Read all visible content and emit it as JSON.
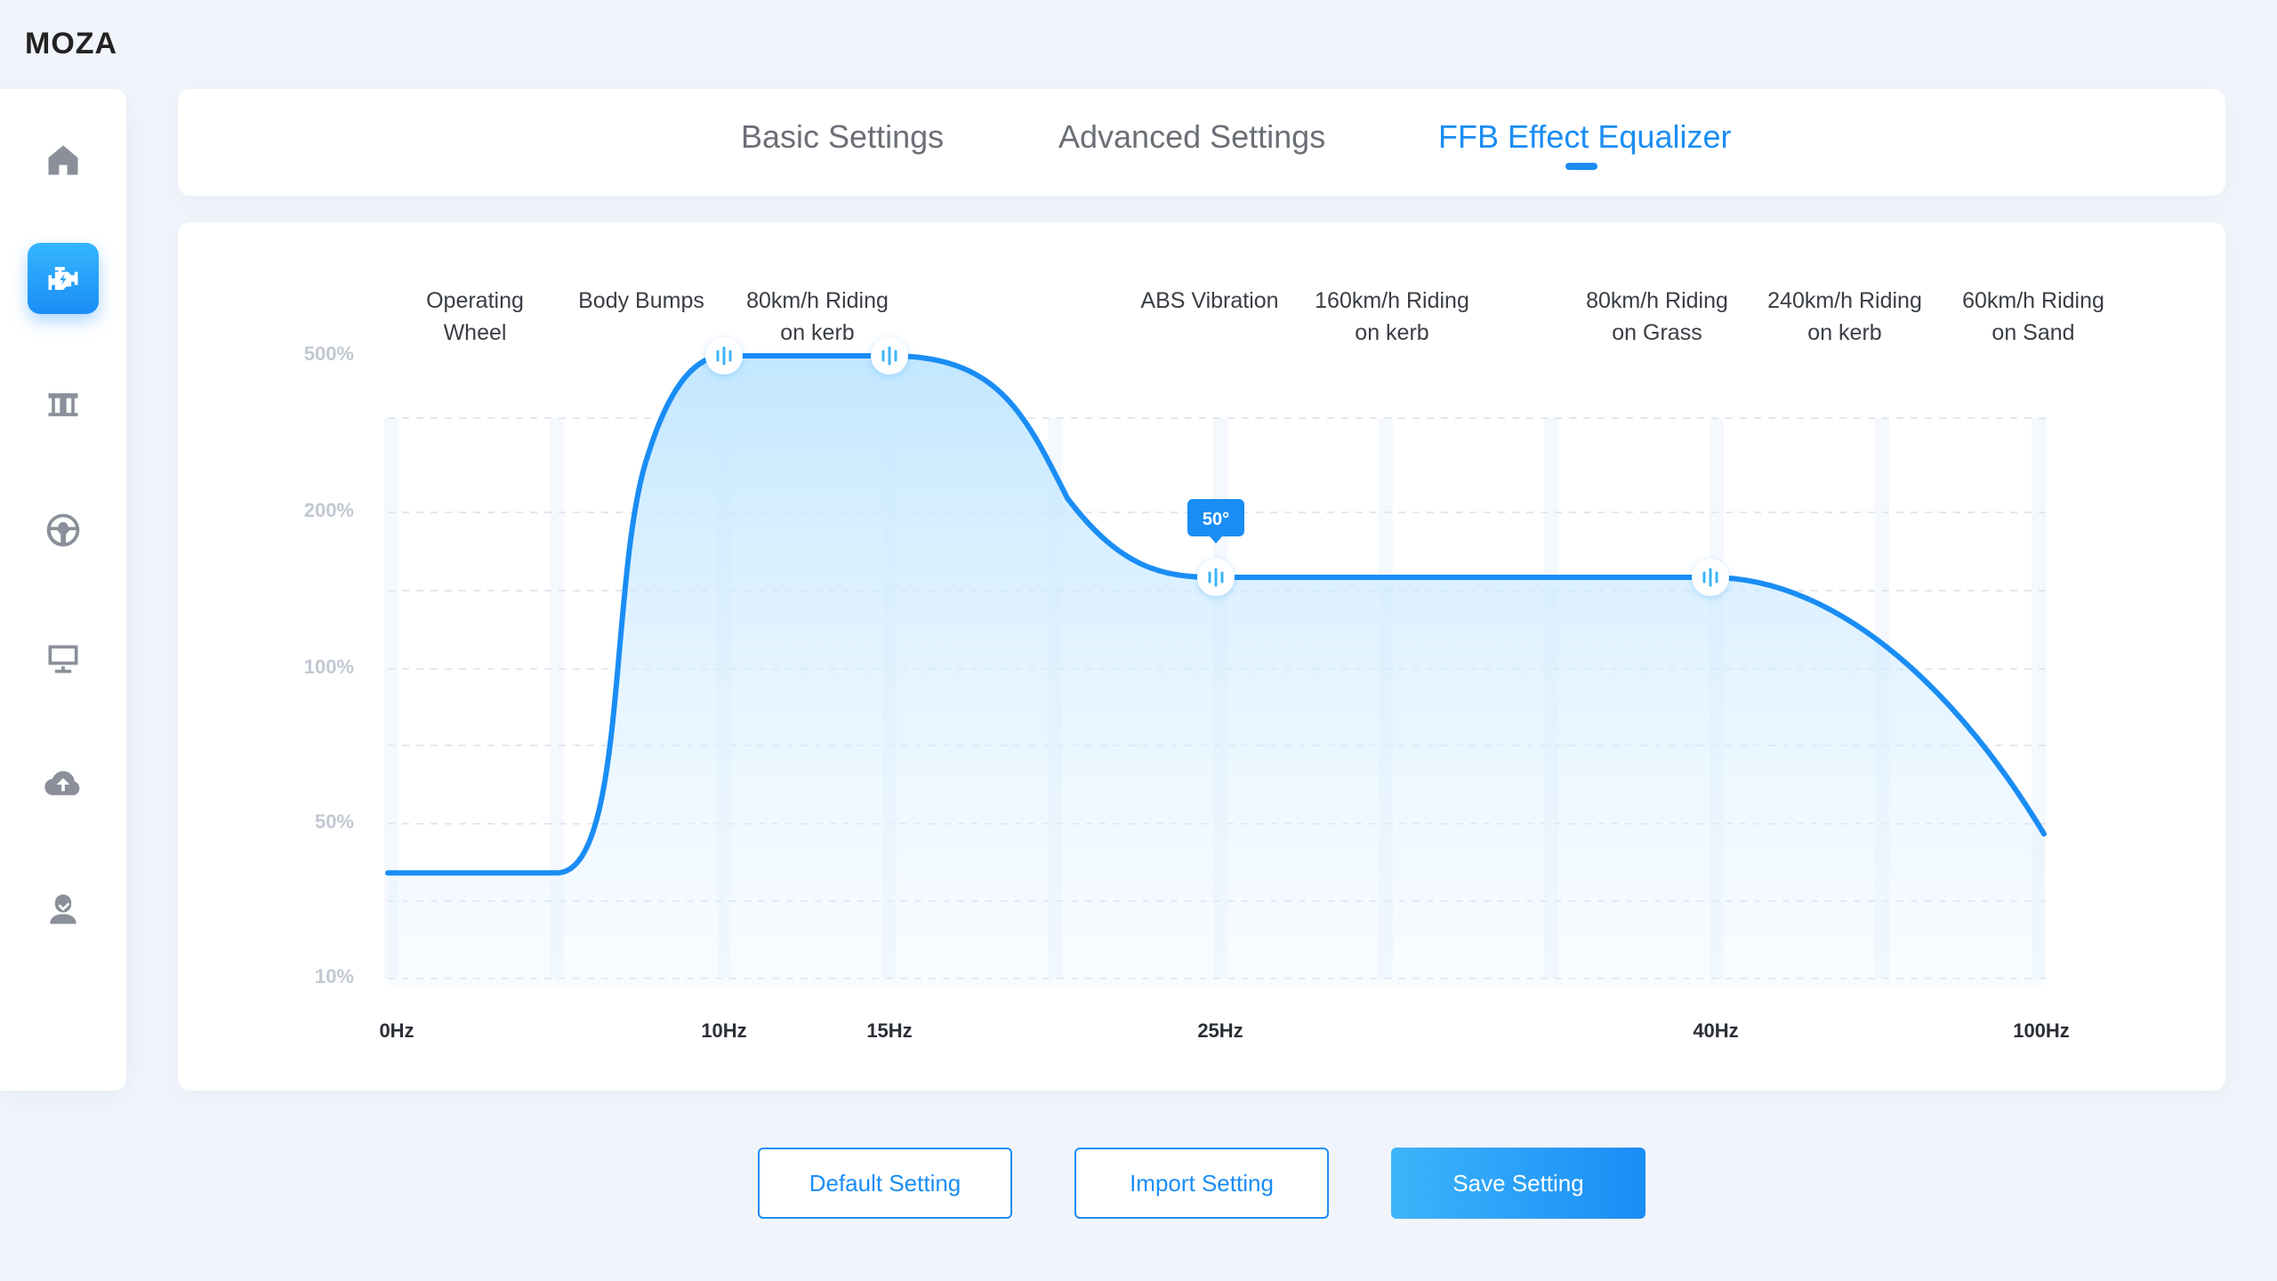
{
  "app": {
    "brand": "MOZA"
  },
  "sidebar": {
    "items": [
      {
        "icon": "home-icon",
        "active": false
      },
      {
        "icon": "engine-icon",
        "active": true
      },
      {
        "icon": "pedals-icon",
        "active": false
      },
      {
        "icon": "steering-wheel-icon",
        "active": false
      },
      {
        "icon": "monitor-icon",
        "active": false
      },
      {
        "icon": "cloud-upload-icon",
        "active": false
      },
      {
        "icon": "user-icon",
        "active": false
      }
    ]
  },
  "tabs": [
    {
      "label": "Basic Settings",
      "active": false
    },
    {
      "label": "Advanced Settings",
      "active": false
    },
    {
      "label": "FFB Effect Equalizer",
      "active": true
    }
  ],
  "colors": {
    "accent": "#1a8df5",
    "accent_light": "#3cb5fb",
    "text_muted": "#6b6f76",
    "background": "#f1f5fb"
  },
  "chart_data": {
    "type": "area",
    "y_ticks": [
      "500%",
      "200%",
      "100%",
      "50%",
      "10%"
    ],
    "x_ticks": [
      "0Hz",
      "10Hz",
      "15Hz",
      "25Hz",
      "40Hz",
      "100Hz"
    ],
    "effect_labels": [
      [
        "Operating",
        "Wheel"
      ],
      [
        "Body Bumps"
      ],
      [
        "80km/h Riding",
        "on kerb"
      ],
      [
        "ABS Vibration"
      ],
      [
        "160km/h Riding",
        "on kerb"
      ],
      [
        "80km/h Riding",
        "on Grass"
      ],
      [
        "240km/h Riding",
        "on kerb"
      ],
      [
        "60km/h Riding",
        "on Sand"
      ]
    ],
    "series": [
      {
        "values": [
          {
            "x": "0Hz",
            "y": 30
          },
          {
            "x": "10Hz",
            "y": 500
          },
          {
            "x": "15Hz",
            "y": 500
          },
          {
            "x": "25Hz",
            "y": 150
          },
          {
            "x": "40Hz",
            "y": 150
          },
          {
            "x": "100Hz",
            "y": 45
          }
        ]
      }
    ],
    "handles": [
      "10Hz",
      "15Hz",
      "25Hz",
      "40Hz"
    ],
    "tooltip": {
      "x": "25Hz",
      "text": "50°"
    },
    "grid": true
  },
  "actions": {
    "default_label": "Default Setting",
    "import_label": "Import Setting",
    "save_label": "Save Setting"
  }
}
